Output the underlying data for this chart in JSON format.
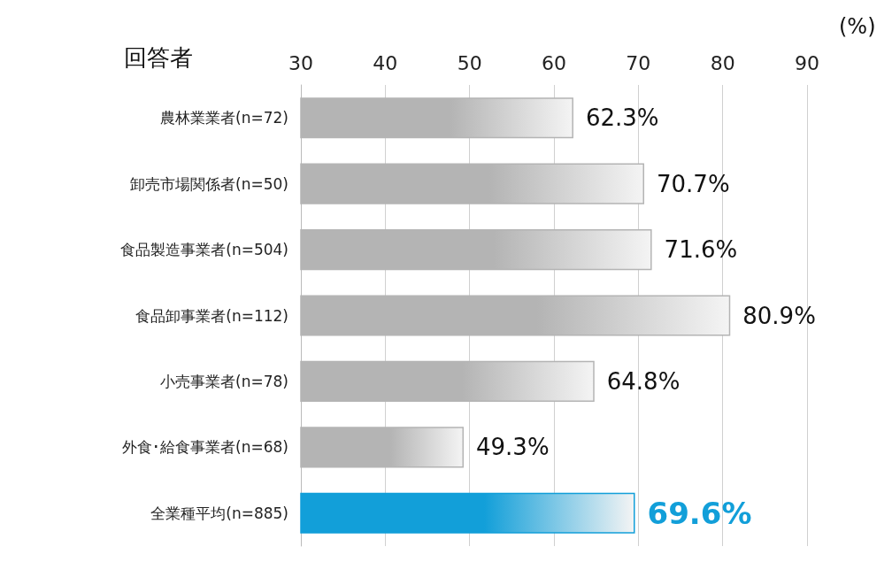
{
  "chart_data": {
    "type": "bar",
    "orientation": "horizontal",
    "ylabel": "回答者",
    "xlabel": "(%)",
    "categories": [
      "農林業業者(n=72)",
      "卸売市場関係者(n=50)",
      "食品製造事業者(n=504)",
      "食品卸事業者(n=112)",
      "小売事業者(n=78)",
      "外食･給食事業者(n=68)",
      "全業種平均(n=885)"
    ],
    "values": [
      62.3,
      70.7,
      71.6,
      80.9,
      64.8,
      49.3,
      69.6
    ],
    "colors": [
      "#b4b4b4",
      "#b4b4b4",
      "#b4b4b4",
      "#b4b4b4",
      "#b4b4b4",
      "#b4b4b4",
      "#129fd9"
    ],
    "value_labels": [
      "62.3%",
      "70.7%",
      "71.6%",
      "80.9%",
      "64.8%",
      "49.3%",
      "69.6%"
    ],
    "xlim": [
      30,
      90
    ],
    "xticks": [
      30,
      40,
      50,
      60,
      70,
      80,
      90
    ],
    "grid": "x"
  }
}
